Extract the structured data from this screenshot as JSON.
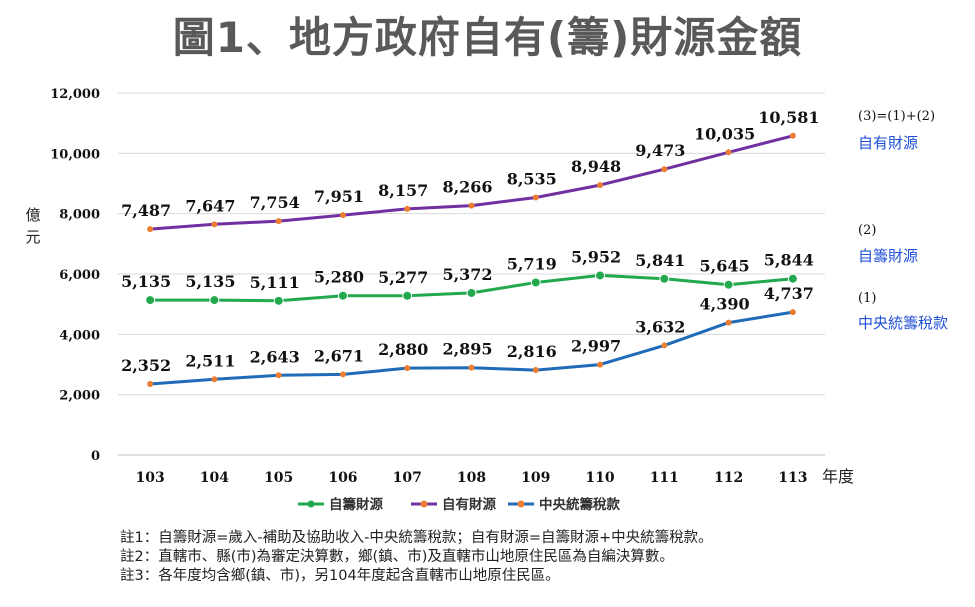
{
  "title": "圖1、地方政府自有(籌)財源金額",
  "chart_data": {
    "type": "line",
    "categories": [
      "103",
      "104",
      "105",
      "106",
      "107",
      "108",
      "109",
      "110",
      "111",
      "112",
      "113"
    ],
    "series": [
      {
        "name": "自籌財源",
        "color": "#22a94e",
        "values": [
          5135,
          5135,
          5111,
          5280,
          5277,
          5372,
          5719,
          5952,
          5841,
          5645,
          5844
        ]
      },
      {
        "name": "自有財源",
        "color": "#7030a0",
        "values": [
          7487,
          7647,
          7754,
          7951,
          8157,
          8266,
          8535,
          8948,
          9473,
          10035,
          10581
        ]
      },
      {
        "name": "中央統籌稅款",
        "color": "#1f6bb8",
        "values": [
          2352,
          2511,
          2643,
          2671,
          2880,
          2895,
          2816,
          2997,
          3632,
          4390,
          4737
        ]
      }
    ],
    "value_labels": [
      [
        "5,135",
        "5,135",
        "5,111",
        "5,280",
        "5,277",
        "5,372",
        "5,719",
        "5,952",
        "5,841",
        "5,645",
        "5,844"
      ],
      [
        "7,487",
        "7,647",
        "7,754",
        "7,951",
        "8,157",
        "8,266",
        "8,535",
        "8,948",
        "9,473",
        "10,035",
        "10,581"
      ],
      [
        "2,352",
        "2,511",
        "2,643",
        "2,671",
        "2,880",
        "2,895",
        "2,816",
        "2,997",
        "3,632",
        "4,390",
        "4,737"
      ]
    ],
    "marker_color": "#ed7d31",
    "ylim": [
      0,
      12000
    ],
    "yticks": [
      0,
      2000,
      4000,
      6000,
      8000,
      10000,
      12000
    ],
    "ytick_labels": [
      "0",
      "2,000",
      "4,000",
      "6,000",
      "8,000",
      "10,000",
      "12,000"
    ],
    "ylabel_chars": [
      "億",
      "元"
    ],
    "xlabel": "年度",
    "grid": true,
    "legend_position": "bottom",
    "annotations": [
      {
        "formula": "(3)=(1)+(2)",
        "label": "自有財源"
      },
      {
        "formula": "(2)",
        "label": "自籌財源"
      },
      {
        "formula": "(1)",
        "label": "中央統籌稅款"
      }
    ],
    "annotation_color": "#1f4fd8"
  },
  "notes": [
    "註1：自籌財源=歲入-補助及協助收入-中央統籌稅款；自有財源=自籌財源+中央統籌稅款。",
    "註2：直轄市、縣(市)為審定決算數，鄉(鎮、市)及直轄市山地原住民區為自編決算數。",
    "註3：各年度均含鄉(鎮、市)，另104年度起含直轄市山地原住民區。"
  ]
}
